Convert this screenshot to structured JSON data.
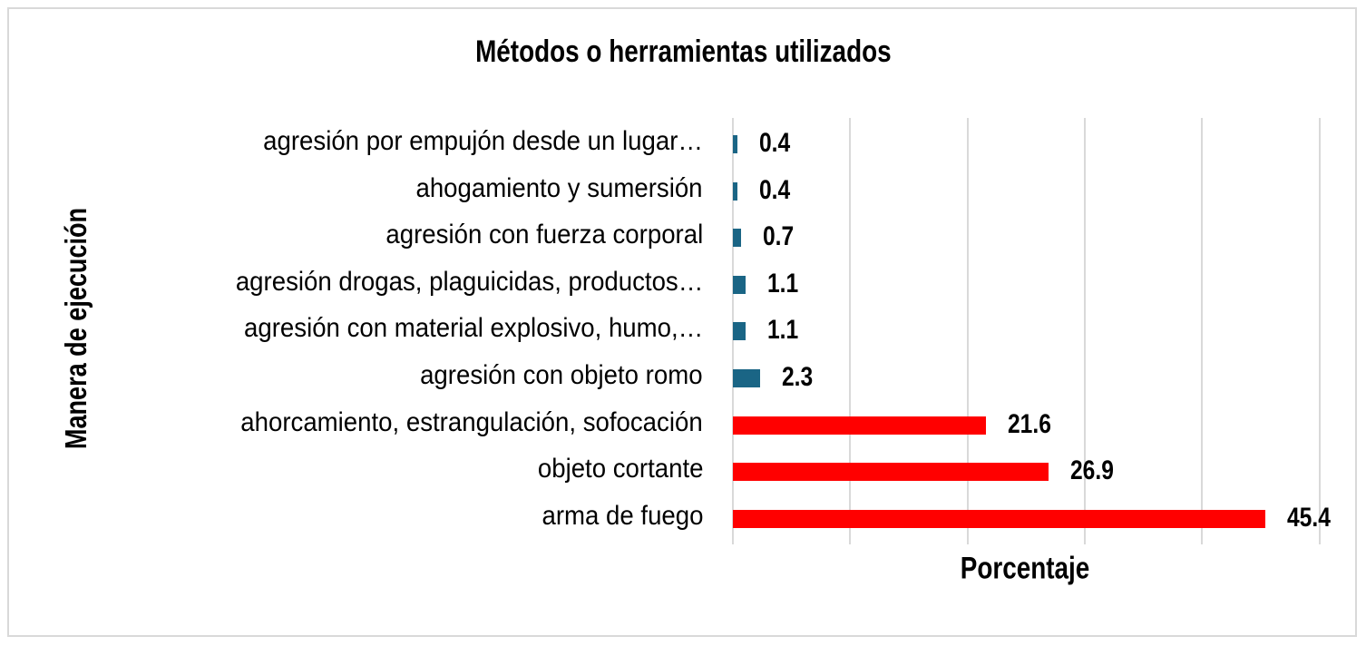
{
  "chart_data": {
    "type": "bar",
    "orientation": "horizontal",
    "title": "Métodos o herramientas utilizados",
    "xlabel": "Porcentaje",
    "ylabel": "Manera de ejecución",
    "xlim": [
      0,
      50
    ],
    "grid": true,
    "gridlines_x": [
      0,
      10,
      20,
      30,
      40,
      50
    ],
    "tick_labels_visible": false,
    "legend": null,
    "categories": [
      "agresión por empujón desde un lugar…",
      "ahogamiento y sumersión",
      "agresión con fuerza corporal",
      "agresión drogas, plaguicidas, productos…",
      "agresión con material explosivo, humo,…",
      "agresión con objeto romo",
      "ahorcamiento, estrangulación, sofocación",
      "objeto cortante",
      "arma de fuego"
    ],
    "values": [
      0.4,
      0.4,
      0.7,
      1.1,
      1.1,
      2.3,
      21.6,
      26.9,
      45.4
    ],
    "value_labels": [
      "0.4",
      "0.4",
      "0.7",
      "1.1",
      "1.1",
      "2.3",
      "21.6",
      "26.9",
      "45.4"
    ],
    "bar_colors": [
      "#1a6585",
      "#1a6585",
      "#1a6585",
      "#1a6585",
      "#1a6585",
      "#1a6585",
      "#ff0000",
      "#ff0000",
      "#ff0000"
    ]
  },
  "colors": {
    "minor_bar": "#1a6585",
    "major_bar": "#ff0000",
    "gridline": "#d9d9d9",
    "border": "#d9d9d9"
  }
}
